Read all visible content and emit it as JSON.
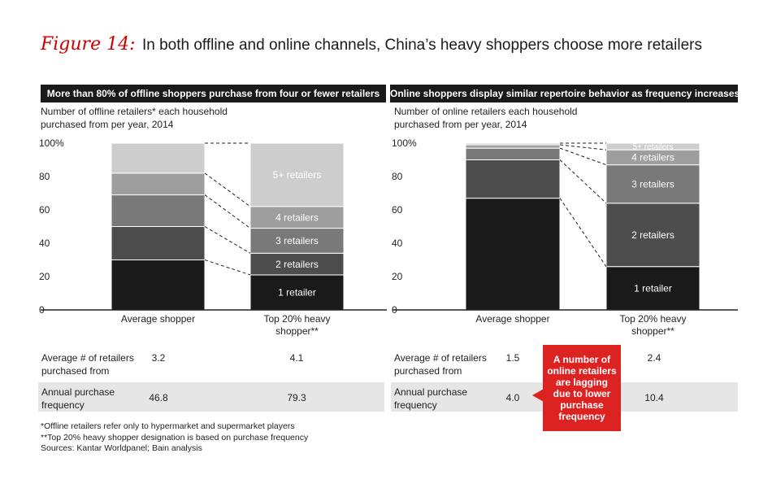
{
  "figure": {
    "label": "Figure 14:",
    "title": "In both offline and online channels, China’s heavy shoppers choose more retailers"
  },
  "colors": {
    "segments": [
      "#1a1a1a",
      "#4d4d4d",
      "#797979",
      "#9e9e9e",
      "#cdcdcd"
    ],
    "callout": "#dd2222"
  },
  "panels": [
    {
      "header": "More than 80% of offline shoppers purchase from four or fewer retailers",
      "subtitle_line1": "Number of offline retailers* each household",
      "subtitle_line2": "purchased from per year, 2014",
      "stats": {
        "retailers_label_1": "Average # of retailers",
        "retailers_label_2": "purchased from",
        "retailers_avg": "3.2",
        "retailers_top": "4.1",
        "freq_label_1": "Annual purchase",
        "freq_label_2": "frequency",
        "freq_avg": "46.8",
        "freq_top": "79.3"
      }
    },
    {
      "header": "Online shoppers display similar repertoire behavior as frequency increases",
      "subtitle_line1": "Number of online retailers each household",
      "subtitle_line2": "purchased from per year, 2014",
      "stats": {
        "retailers_label_1": "Average # of retailers",
        "retailers_label_2": "purchased from",
        "retailers_avg": "1.5",
        "retailers_top": "2.4",
        "freq_label_1": "Annual purchase",
        "freq_label_2": "frequency",
        "freq_avg": "4.0",
        "freq_top": "10.4"
      }
    }
  ],
  "callout": "A number of online retailers are lagging due to lower purchase frequency",
  "footnotes": [
    "*Offline retailers refer only to hypermarket and supermarket players",
    "**Top 20% heavy shopper designation is based on purchase frequency",
    "Sources: Kantar Worldpanel; Bain analysis"
  ],
  "chart_data": [
    {
      "type": "bar",
      "stacked": true,
      "title": "More than 80% of offline shoppers purchase from four or fewer retailers",
      "ylabel": "Number of offline retailers* each household purchased from per year, 2014",
      "ylim": [
        0,
        100
      ],
      "yticks": [
        "0",
        "20",
        "40",
        "60",
        "80",
        "100%"
      ],
      "categories": [
        "Average shopper",
        "Top 20% heavy shopper**"
      ],
      "series": [
        {
          "name": "1 retailer",
          "values": [
            30,
            21
          ]
        },
        {
          "name": "2 retailers",
          "values": [
            20,
            13
          ]
        },
        {
          "name": "3 retailers",
          "values": [
            19,
            15
          ]
        },
        {
          "name": "4 retailers",
          "values": [
            13,
            13
          ]
        },
        {
          "name": "5+ retailers",
          "values": [
            18,
            38
          ]
        }
      ]
    },
    {
      "type": "bar",
      "stacked": true,
      "title": "Online shoppers display similar repertoire behavior as frequency increases",
      "ylabel": "Number of online retailers each household purchased from per year, 2014",
      "ylim": [
        0,
        100
      ],
      "yticks": [
        "0",
        "20",
        "40",
        "60",
        "80",
        "100%"
      ],
      "categories": [
        "Average shopper",
        "Top 20% heavy shopper**"
      ],
      "series": [
        {
          "name": "1 retailer",
          "values": [
            67,
            26
          ]
        },
        {
          "name": "2 retailers",
          "values": [
            23,
            38
          ]
        },
        {
          "name": "3 retailers",
          "values": [
            7,
            23
          ]
        },
        {
          "name": "4 retailers",
          "values": [
            2,
            9
          ]
        },
        {
          "name": "5+ retailers",
          "values": [
            1,
            4
          ]
        }
      ]
    }
  ]
}
